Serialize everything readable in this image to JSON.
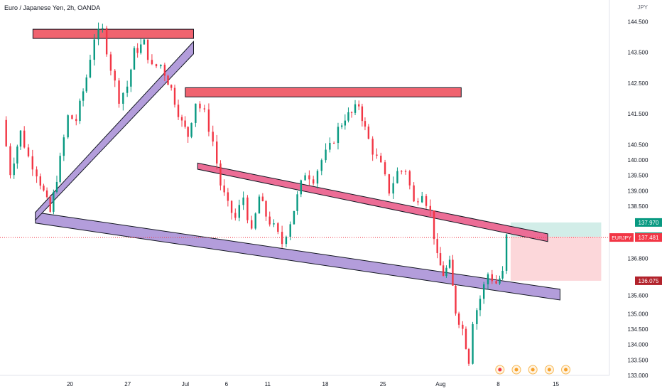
{
  "header": {
    "title": "Euro / Japanese Yen, 2h, OANDA",
    "currency": "JPY"
  },
  "chart_data": {
    "type": "candlestick",
    "symbol": "EURJPY",
    "ylim": [
      133.0,
      145.2
    ],
    "y_ticks": [
      "144.500",
      "143.500",
      "142.500",
      "141.500",
      "140.500",
      "140.000",
      "139.500",
      "139.000",
      "138.500",
      "136.800",
      "135.600",
      "135.000",
      "134.500",
      "134.000",
      "133.500",
      "133.000"
    ],
    "x_ticks": [
      {
        "label": "20",
        "day": 20
      },
      {
        "label": "27",
        "day": 27
      },
      {
        "label": "Jul",
        "day": 34
      },
      {
        "label": "6",
        "day": 39
      },
      {
        "label": "11",
        "day": 44
      },
      {
        "label": "18",
        "day": 51
      },
      {
        "label": "25",
        "day": 58
      },
      {
        "label": "Aug",
        "day": 65
      },
      {
        "label": "8",
        "day": 72
      },
      {
        "label": "15",
        "day": 79
      }
    ],
    "price_labels": [
      {
        "name": "target",
        "text": "137.970",
        "value": 137.97,
        "color": "#089981"
      },
      {
        "name": "entry",
        "text": "137.505",
        "value": 137.505,
        "color": "#089981"
      },
      {
        "name": "current",
        "symbol": "EURJPY",
        "text": "137.481",
        "value": 137.481,
        "color": "#f23645"
      },
      {
        "name": "stop",
        "text": "136.075",
        "value": 136.075,
        "color": "#b2222b"
      }
    ],
    "price_path": [
      [
        12.0,
        141.3
      ],
      [
        13.0,
        139.6
      ],
      [
        14.2,
        140.9
      ],
      [
        15.2,
        140.1
      ],
      [
        16.2,
        139.6
      ],
      [
        17.8,
        138.3
      ],
      [
        19.0,
        140.0
      ],
      [
        20.0,
        141.4
      ],
      [
        21.0,
        141.3
      ],
      [
        22.2,
        142.7
      ],
      [
        23.2,
        144.0
      ],
      [
        24.2,
        144.2
      ],
      [
        25.2,
        143.0
      ],
      [
        26.2,
        142.0
      ],
      [
        27.2,
        142.4
      ],
      [
        28.0,
        143.5
      ],
      [
        29.2,
        143.8
      ],
      [
        30.2,
        143.0
      ],
      [
        31.3,
        143.1
      ],
      [
        32.5,
        142.3
      ],
      [
        33.8,
        141.2
      ],
      [
        34.5,
        140.8
      ],
      [
        35.5,
        141.9
      ],
      [
        36.6,
        141.5
      ],
      [
        37.6,
        140.6
      ],
      [
        38.5,
        139.2
      ],
      [
        39.4,
        138.5
      ],
      [
        40.3,
        138.1
      ],
      [
        41.3,
        138.8
      ],
      [
        42.3,
        137.6
      ],
      [
        43.2,
        138.8
      ],
      [
        44.0,
        138.2
      ],
      [
        45.0,
        137.8
      ],
      [
        46.0,
        137.3
      ],
      [
        47.0,
        138.0
      ],
      [
        47.8,
        138.8
      ],
      [
        48.8,
        139.6
      ],
      [
        49.8,
        139.4
      ],
      [
        50.8,
        140.0
      ],
      [
        51.8,
        140.4
      ],
      [
        52.8,
        141.0
      ],
      [
        53.6,
        141.4
      ],
      [
        54.4,
        141.5
      ],
      [
        55.3,
        141.8
      ],
      [
        56.0,
        141.0
      ],
      [
        57.0,
        140.3
      ],
      [
        58.0,
        139.8
      ],
      [
        59.0,
        139.0
      ],
      [
        60.0,
        139.6
      ],
      [
        61.0,
        139.7
      ],
      [
        62.0,
        138.6
      ],
      [
        63.0,
        139.0
      ],
      [
        64.0,
        138.3
      ],
      [
        64.8,
        136.8
      ],
      [
        65.5,
        136.3
      ],
      [
        66.3,
        136.6
      ],
      [
        67.0,
        135.1
      ],
      [
        67.9,
        134.5
      ],
      [
        68.6,
        133.5
      ],
      [
        69.2,
        134.8
      ],
      [
        70.0,
        135.5
      ],
      [
        71.0,
        136.3
      ],
      [
        72.0,
        136.0
      ],
      [
        72.7,
        136.3
      ],
      [
        73.3,
        137.5
      ]
    ],
    "annotations": {
      "resistance_zones": [
        {
          "x": [
            15.5,
            35.0
          ],
          "y": [
            143.95,
            144.25
          ]
        },
        {
          "x": [
            34.0,
            67.5
          ],
          "y": [
            142.05,
            142.35
          ]
        }
      ],
      "channel_bands": [
        {
          "name": "lower-support",
          "color": "#b39ddb",
          "x": [
            15.8,
            79.5
          ],
          "y_start": [
            138.3,
            137.95
          ],
          "y_end": [
            135.8,
            135.45
          ]
        },
        {
          "name": "rising-trend",
          "color": "#b39ddb",
          "x": [
            15.8,
            35.0
          ],
          "y_start": [
            138.3,
            138.05
          ],
          "y_end": [
            143.85,
            143.45
          ]
        },
        {
          "name": "descending-resistance",
          "color": "#ec6d96",
          "x": [
            35.5,
            78.0
          ],
          "y_start": [
            139.9,
            139.7
          ],
          "y_end": [
            137.6,
            137.35
          ]
        }
      ],
      "position": {
        "x": [
          73.5,
          84.5
        ],
        "entry": 137.505,
        "target": 137.97,
        "stop": 136.075
      }
    }
  }
}
